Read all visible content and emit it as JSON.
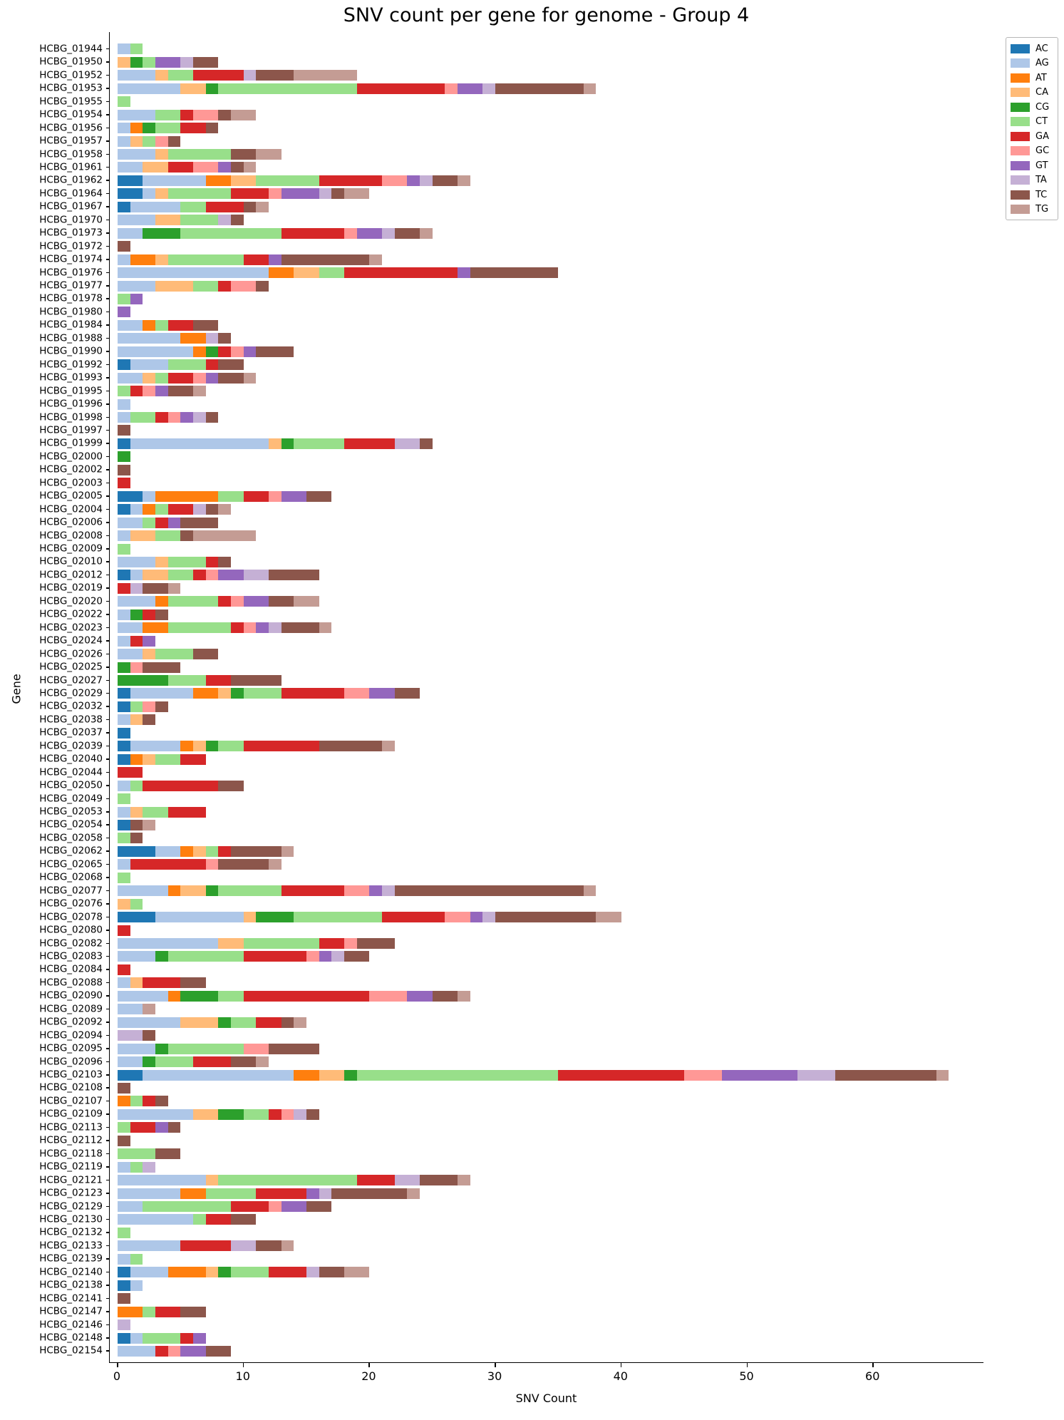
{
  "figure": {
    "title": "SNV count per gene for genome - Group 4"
  },
  "chart_data": {
    "type": "bar",
    "subtype": "horizontal_stacked",
    "title": "SNV count per gene for genome - Group 4",
    "xlabel": "SNV Count",
    "ylabel": "Gene",
    "xticks": [
      0,
      10,
      20,
      30,
      40,
      50,
      60
    ],
    "xlim": [
      0,
      69
    ],
    "grid": false,
    "legend_position": "upper-right-outside",
    "series_names": [
      "AC",
      "AG",
      "AT",
      "CA",
      "CG",
      "CT",
      "GA",
      "GC",
      "GT",
      "TA",
      "TC",
      "TG"
    ],
    "series_colors": [
      "#1f77b4",
      "#aec7e8",
      "#ff7f0e",
      "#ffbb78",
      "#2ca02c",
      "#98df8a",
      "#d62728",
      "#ff9896",
      "#9467bd",
      "#c5b0d5",
      "#8c564b",
      "#c49c94"
    ],
    "categories": [
      "HCBG_01944",
      "HCBG_01950",
      "HCBG_01952",
      "HCBG_01953",
      "HCBG_01955",
      "HCBG_01954",
      "HCBG_01956",
      "HCBG_01957",
      "HCBG_01958",
      "HCBG_01961",
      "HCBG_01962",
      "HCBG_01964",
      "HCBG_01967",
      "HCBG_01970",
      "HCBG_01973",
      "HCBG_01972",
      "HCBG_01974",
      "HCBG_01976",
      "HCBG_01977",
      "HCBG_01978",
      "HCBG_01980",
      "HCBG_01984",
      "HCBG_01988",
      "HCBG_01990",
      "HCBG_01992",
      "HCBG_01993",
      "HCBG_01995",
      "HCBG_01996",
      "HCBG_01998",
      "HCBG_01997",
      "HCBG_01999",
      "HCBG_02000",
      "HCBG_02002",
      "HCBG_02003",
      "HCBG_02005",
      "HCBG_02004",
      "HCBG_02006",
      "HCBG_02008",
      "HCBG_02009",
      "HCBG_02010",
      "HCBG_02012",
      "HCBG_02019",
      "HCBG_02020",
      "HCBG_02022",
      "HCBG_02023",
      "HCBG_02024",
      "HCBG_02026",
      "HCBG_02025",
      "HCBG_02027",
      "HCBG_02029",
      "HCBG_02032",
      "HCBG_02038",
      "HCBG_02037",
      "HCBG_02039",
      "HCBG_02040",
      "HCBG_02044",
      "HCBG_02050",
      "HCBG_02049",
      "HCBG_02053",
      "HCBG_02054",
      "HCBG_02058",
      "HCBG_02062",
      "HCBG_02065",
      "HCBG_02068",
      "HCBG_02077",
      "HCBG_02076",
      "HCBG_02078",
      "HCBG_02080",
      "HCBG_02082",
      "HCBG_02083",
      "HCBG_02084",
      "HCBG_02088",
      "HCBG_02090",
      "HCBG_02089",
      "HCBG_02092",
      "HCBG_02094",
      "HCBG_02095",
      "HCBG_02096",
      "HCBG_02103",
      "HCBG_02108",
      "HCBG_02107",
      "HCBG_02109",
      "HCBG_02113",
      "HCBG_02112",
      "HCBG_02118",
      "HCBG_02119",
      "HCBG_02121",
      "HCBG_02123",
      "HCBG_02129",
      "HCBG_02130",
      "HCBG_02132",
      "HCBG_02133",
      "HCBG_02139",
      "HCBG_02140",
      "HCBG_02138",
      "HCBG_02141",
      "HCBG_02147",
      "HCBG_02146",
      "HCBG_02148",
      "HCBG_02154"
    ],
    "values": [
      [
        0,
        1,
        0,
        0,
        0,
        1,
        0,
        0,
        0,
        0,
        0,
        0
      ],
      [
        0,
        0,
        0,
        1,
        1,
        1,
        0,
        0,
        2,
        1,
        2,
        0
      ],
      [
        0,
        3,
        0,
        1,
        0,
        2,
        4,
        0,
        0,
        1,
        3,
        5
      ],
      [
        0,
        5,
        0,
        2,
        1,
        11,
        7,
        1,
        2,
        1,
        7,
        1
      ],
      [
        0,
        0,
        0,
        0,
        0,
        1,
        0,
        0,
        0,
        0,
        0,
        0
      ],
      [
        0,
        3,
        0,
        0,
        0,
        2,
        1,
        2,
        0,
        0,
        1,
        2
      ],
      [
        0,
        1,
        1,
        0,
        1,
        2,
        2,
        0,
        0,
        0,
        1,
        0
      ],
      [
        0,
        1,
        0,
        1,
        0,
        1,
        0,
        1,
        0,
        0,
        1,
        0
      ],
      [
        0,
        3,
        0,
        1,
        0,
        5,
        0,
        0,
        0,
        0,
        2,
        2
      ],
      [
        0,
        2,
        0,
        2,
        0,
        0,
        2,
        2,
        1,
        0,
        1,
        1
      ],
      [
        2,
        5,
        2,
        2,
        0,
        5,
        5,
        2,
        1,
        1,
        2,
        1
      ],
      [
        2,
        1,
        0,
        1,
        0,
        5,
        3,
        1,
        3,
        1,
        1,
        2
      ],
      [
        1,
        4,
        0,
        0,
        0,
        2,
        3,
        0,
        0,
        0,
        1,
        1
      ],
      [
        0,
        3,
        0,
        2,
        0,
        3,
        0,
        0,
        0,
        1,
        1,
        0
      ],
      [
        0,
        2,
        0,
        0,
        3,
        8,
        5,
        1,
        2,
        1,
        2,
        1
      ],
      [
        0,
        0,
        0,
        0,
        0,
        0,
        0,
        0,
        0,
        0,
        1,
        0
      ],
      [
        0,
        1,
        2,
        1,
        0,
        6,
        2,
        0,
        1,
        0,
        7,
        1
      ],
      [
        0,
        12,
        2,
        2,
        0,
        2,
        9,
        0,
        1,
        0,
        7,
        0
      ],
      [
        0,
        3,
        0,
        3,
        0,
        2,
        1,
        2,
        0,
        0,
        1,
        0
      ],
      [
        0,
        0,
        0,
        0,
        0,
        1,
        0,
        0,
        1,
        0,
        0,
        0
      ],
      [
        0,
        0,
        0,
        0,
        0,
        0,
        0,
        0,
        1,
        0,
        0,
        0
      ],
      [
        0,
        2,
        1,
        0,
        0,
        1,
        2,
        0,
        0,
        0,
        2,
        0
      ],
      [
        0,
        5,
        2,
        0,
        0,
        0,
        0,
        0,
        0,
        1,
        1,
        0
      ],
      [
        0,
        6,
        1,
        0,
        1,
        0,
        1,
        1,
        1,
        0,
        3,
        0
      ],
      [
        1,
        3,
        0,
        0,
        0,
        3,
        1,
        0,
        0,
        0,
        2,
        0
      ],
      [
        0,
        2,
        0,
        1,
        0,
        1,
        2,
        1,
        1,
        0,
        2,
        1
      ],
      [
        0,
        0,
        0,
        0,
        0,
        1,
        1,
        1,
        1,
        0,
        2,
        1
      ],
      [
        0,
        1,
        0,
        0,
        0,
        0,
        0,
        0,
        0,
        0,
        0,
        0
      ],
      [
        0,
        1,
        0,
        0,
        0,
        2,
        1,
        1,
        1,
        1,
        1,
        0
      ],
      [
        0,
        0,
        0,
        0,
        0,
        0,
        0,
        0,
        0,
        0,
        1,
        0
      ],
      [
        1,
        11,
        0,
        1,
        1,
        4,
        4,
        0,
        0,
        2,
        1,
        0
      ],
      [
        0,
        0,
        0,
        0,
        1,
        0,
        0,
        0,
        0,
        0,
        0,
        0
      ],
      [
        0,
        0,
        0,
        0,
        0,
        0,
        0,
        0,
        0,
        0,
        1,
        0
      ],
      [
        0,
        0,
        0,
        0,
        0,
        0,
        1,
        0,
        0,
        0,
        0,
        0
      ],
      [
        2,
        1,
        5,
        0,
        0,
        2,
        2,
        1,
        2,
        0,
        2,
        0
      ],
      [
        1,
        1,
        1,
        0,
        0,
        1,
        2,
        0,
        0,
        1,
        1,
        1
      ],
      [
        0,
        2,
        0,
        0,
        0,
        1,
        1,
        0,
        1,
        0,
        3,
        0
      ],
      [
        0,
        1,
        0,
        2,
        0,
        2,
        0,
        0,
        0,
        0,
        1,
        5
      ],
      [
        0,
        0,
        0,
        0,
        0,
        1,
        0,
        0,
        0,
        0,
        0,
        0
      ],
      [
        0,
        3,
        0,
        1,
        0,
        3,
        1,
        0,
        0,
        0,
        1,
        0
      ],
      [
        1,
        1,
        0,
        2,
        0,
        2,
        1,
        1,
        2,
        2,
        4,
        0
      ],
      [
        0,
        0,
        0,
        0,
        0,
        0,
        1,
        0,
        0,
        1,
        2,
        1
      ],
      [
        0,
        3,
        1,
        0,
        0,
        4,
        1,
        1,
        2,
        0,
        2,
        2
      ],
      [
        0,
        1,
        0,
        0,
        1,
        0,
        1,
        0,
        0,
        0,
        1,
        0
      ],
      [
        0,
        2,
        2,
        0,
        0,
        5,
        1,
        1,
        1,
        1,
        3,
        1
      ],
      [
        0,
        1,
        0,
        0,
        0,
        0,
        1,
        0,
        1,
        0,
        0,
        0
      ],
      [
        0,
        2,
        0,
        1,
        0,
        3,
        0,
        0,
        0,
        0,
        2,
        0
      ],
      [
        0,
        0,
        0,
        0,
        1,
        0,
        0,
        1,
        0,
        0,
        3,
        0
      ],
      [
        0,
        0,
        0,
        0,
        4,
        3,
        2,
        0,
        0,
        0,
        4,
        0
      ],
      [
        1,
        5,
        2,
        1,
        1,
        3,
        5,
        2,
        2,
        0,
        2,
        0
      ],
      [
        1,
        0,
        0,
        0,
        0,
        1,
        0,
        1,
        0,
        0,
        1,
        0
      ],
      [
        0,
        1,
        0,
        1,
        0,
        0,
        0,
        0,
        0,
        0,
        1,
        0
      ],
      [
        1,
        0,
        0,
        0,
        0,
        0,
        0,
        0,
        0,
        0,
        0,
        0
      ],
      [
        1,
        4,
        1,
        1,
        1,
        2,
        6,
        0,
        0,
        0,
        5,
        1
      ],
      [
        1,
        0,
        1,
        1,
        0,
        2,
        2,
        0,
        0,
        0,
        0,
        0
      ],
      [
        0,
        0,
        0,
        0,
        0,
        0,
        2,
        0,
        0,
        0,
        0,
        0
      ],
      [
        0,
        1,
        0,
        0,
        0,
        1,
        6,
        0,
        0,
        0,
        2,
        0
      ],
      [
        0,
        0,
        0,
        0,
        0,
        1,
        0,
        0,
        0,
        0,
        0,
        0
      ],
      [
        0,
        1,
        0,
        1,
        0,
        2,
        3,
        0,
        0,
        0,
        0,
        0
      ],
      [
        1,
        0,
        0,
        0,
        0,
        0,
        0,
        0,
        0,
        0,
        1,
        1
      ],
      [
        0,
        0,
        0,
        0,
        0,
        1,
        0,
        0,
        0,
        0,
        1,
        0
      ],
      [
        3,
        2,
        1,
        1,
        0,
        1,
        1,
        0,
        0,
        0,
        4,
        1
      ],
      [
        0,
        1,
        0,
        0,
        0,
        0,
        6,
        1,
        0,
        0,
        4,
        1
      ],
      [
        0,
        0,
        0,
        0,
        0,
        1,
        0,
        0,
        0,
        0,
        0,
        0
      ],
      [
        0,
        4,
        1,
        2,
        1,
        5,
        5,
        2,
        1,
        1,
        15,
        1
      ],
      [
        0,
        0,
        0,
        1,
        0,
        1,
        0,
        0,
        0,
        0,
        0,
        0
      ],
      [
        3,
        7,
        0,
        1,
        3,
        7,
        5,
        2,
        1,
        1,
        8,
        2
      ],
      [
        0,
        0,
        0,
        0,
        0,
        0,
        1,
        0,
        0,
        0,
        0,
        0
      ],
      [
        0,
        8,
        0,
        2,
        0,
        6,
        2,
        1,
        0,
        0,
        3,
        0
      ],
      [
        0,
        3,
        0,
        0,
        1,
        6,
        5,
        1,
        1,
        1,
        2,
        0
      ],
      [
        0,
        0,
        0,
        0,
        0,
        0,
        1,
        0,
        0,
        0,
        0,
        0
      ],
      [
        0,
        1,
        0,
        1,
        0,
        0,
        3,
        0,
        0,
        0,
        2,
        0
      ],
      [
        0,
        4,
        1,
        0,
        3,
        2,
        10,
        3,
        2,
        0,
        2,
        1
      ],
      [
        0,
        2,
        0,
        0,
        0,
        0,
        0,
        0,
        0,
        0,
        0,
        1
      ],
      [
        0,
        5,
        0,
        3,
        1,
        2,
        2,
        0,
        0,
        0,
        1,
        1
      ],
      [
        0,
        0,
        0,
        0,
        0,
        0,
        0,
        0,
        0,
        2,
        1,
        0
      ],
      [
        0,
        3,
        0,
        0,
        1,
        6,
        0,
        2,
        0,
        0,
        4,
        0
      ],
      [
        0,
        2,
        0,
        0,
        1,
        3,
        3,
        0,
        0,
        0,
        2,
        1
      ],
      [
        2,
        12,
        2,
        2,
        1,
        16,
        10,
        3,
        6,
        3,
        8,
        1
      ],
      [
        0,
        0,
        0,
        0,
        0,
        0,
        0,
        0,
        0,
        0,
        1,
        0
      ],
      [
        0,
        0,
        1,
        0,
        0,
        1,
        1,
        0,
        0,
        0,
        1,
        0
      ],
      [
        0,
        6,
        0,
        2,
        2,
        2,
        1,
        1,
        0,
        1,
        1,
        0
      ],
      [
        0,
        0,
        0,
        0,
        0,
        1,
        2,
        0,
        1,
        0,
        1,
        0
      ],
      [
        0,
        0,
        0,
        0,
        0,
        0,
        0,
        0,
        0,
        0,
        1,
        0
      ],
      [
        0,
        0,
        0,
        0,
        0,
        3,
        0,
        0,
        0,
        0,
        2,
        0
      ],
      [
        0,
        1,
        0,
        0,
        0,
        1,
        0,
        0,
        0,
        1,
        0,
        0
      ],
      [
        0,
        7,
        0,
        1,
        0,
        11,
        3,
        0,
        0,
        2,
        3,
        1
      ],
      [
        0,
        5,
        2,
        0,
        0,
        4,
        4,
        0,
        1,
        1,
        6,
        1
      ],
      [
        0,
        2,
        0,
        0,
        0,
        7,
        3,
        1,
        2,
        0,
        2,
        0
      ],
      [
        0,
        6,
        0,
        0,
        0,
        1,
        2,
        0,
        0,
        0,
        2,
        0
      ],
      [
        0,
        0,
        0,
        0,
        0,
        1,
        0,
        0,
        0,
        0,
        0,
        0
      ],
      [
        0,
        5,
        0,
        0,
        0,
        0,
        4,
        0,
        0,
        2,
        2,
        1
      ],
      [
        0,
        1,
        0,
        0,
        0,
        1,
        0,
        0,
        0,
        0,
        0,
        0
      ],
      [
        1,
        3,
        3,
        1,
        1,
        3,
        3,
        0,
        0,
        1,
        2,
        2
      ],
      [
        1,
        1,
        0,
        0,
        0,
        0,
        0,
        0,
        0,
        0,
        0,
        0
      ],
      [
        0,
        0,
        0,
        0,
        0,
        0,
        0,
        0,
        0,
        0,
        1,
        0
      ],
      [
        0,
        0,
        2,
        0,
        0,
        1,
        2,
        0,
        0,
        0,
        2,
        0
      ],
      [
        0,
        0,
        0,
        0,
        0,
        0,
        0,
        0,
        0,
        1,
        0,
        0
      ],
      [
        1,
        1,
        0,
        0,
        0,
        3,
        1,
        0,
        1,
        0,
        0,
        0
      ],
      [
        0,
        3,
        0,
        0,
        0,
        0,
        1,
        1,
        2,
        0,
        2,
        0
      ]
    ]
  }
}
